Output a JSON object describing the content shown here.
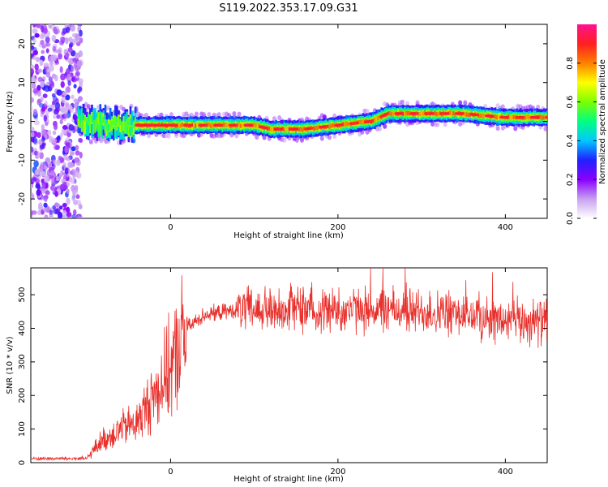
{
  "title": "S119.2022.353.17.09.G31",
  "chart_data": [
    {
      "type": "heatmap",
      "xlabel": "Height of straight line (km)",
      "ylabel": "Frequency (Hz)",
      "xlim": [
        -167,
        450
      ],
      "ylim": [
        -25,
        25
      ],
      "xticks": [
        0,
        200,
        400
      ],
      "yticks": [
        -20,
        -10,
        0,
        10,
        20
      ],
      "colorbar": {
        "label": "Normalized spectral amplitude",
        "range": [
          0,
          1
        ],
        "ticks": [
          "0.0",
          "0.2",
          "0.4",
          "0.6",
          "0.8"
        ],
        "colormap": [
          "#ffffff",
          "#c8a0f0",
          "#8a00ff",
          "#2020ff",
          "#00c8ff",
          "#00ff80",
          "#7dff00",
          "#ffff00",
          "#ff8000",
          "#ff2020",
          "#ff1090"
        ]
      },
      "ridge": {
        "x": [
          -110,
          -60,
          -40,
          0,
          50,
          100,
          120,
          160,
          200,
          240,
          260,
          300,
          350,
          400,
          450
        ],
        "freq": [
          0,
          -1,
          -1,
          -1,
          -1,
          -1,
          -2,
          -2,
          -1,
          0,
          2,
          2,
          2,
          1,
          1
        ]
      }
    },
    {
      "type": "line",
      "xlabel": "Height of straight line (km)",
      "ylabel": "SNR (10 * v/v)",
      "xlim": [
        -167,
        450
      ],
      "ylim": [
        0,
        580
      ],
      "xticks": [
        0,
        200,
        400
      ],
      "yticks": [
        0,
        100,
        200,
        300,
        400,
        500
      ],
      "color": "#e8312c",
      "envelope": {
        "x": [
          -167,
          -100,
          -85,
          -60,
          -40,
          -20,
          0,
          20,
          40,
          80,
          120,
          150,
          200,
          250,
          300,
          350,
          400,
          450
        ],
        "y": [
          12,
          12,
          60,
          100,
          120,
          200,
          280,
          400,
          440,
          455,
          455,
          455,
          455,
          455,
          450,
          440,
          420,
          420
        ]
      }
    }
  ]
}
